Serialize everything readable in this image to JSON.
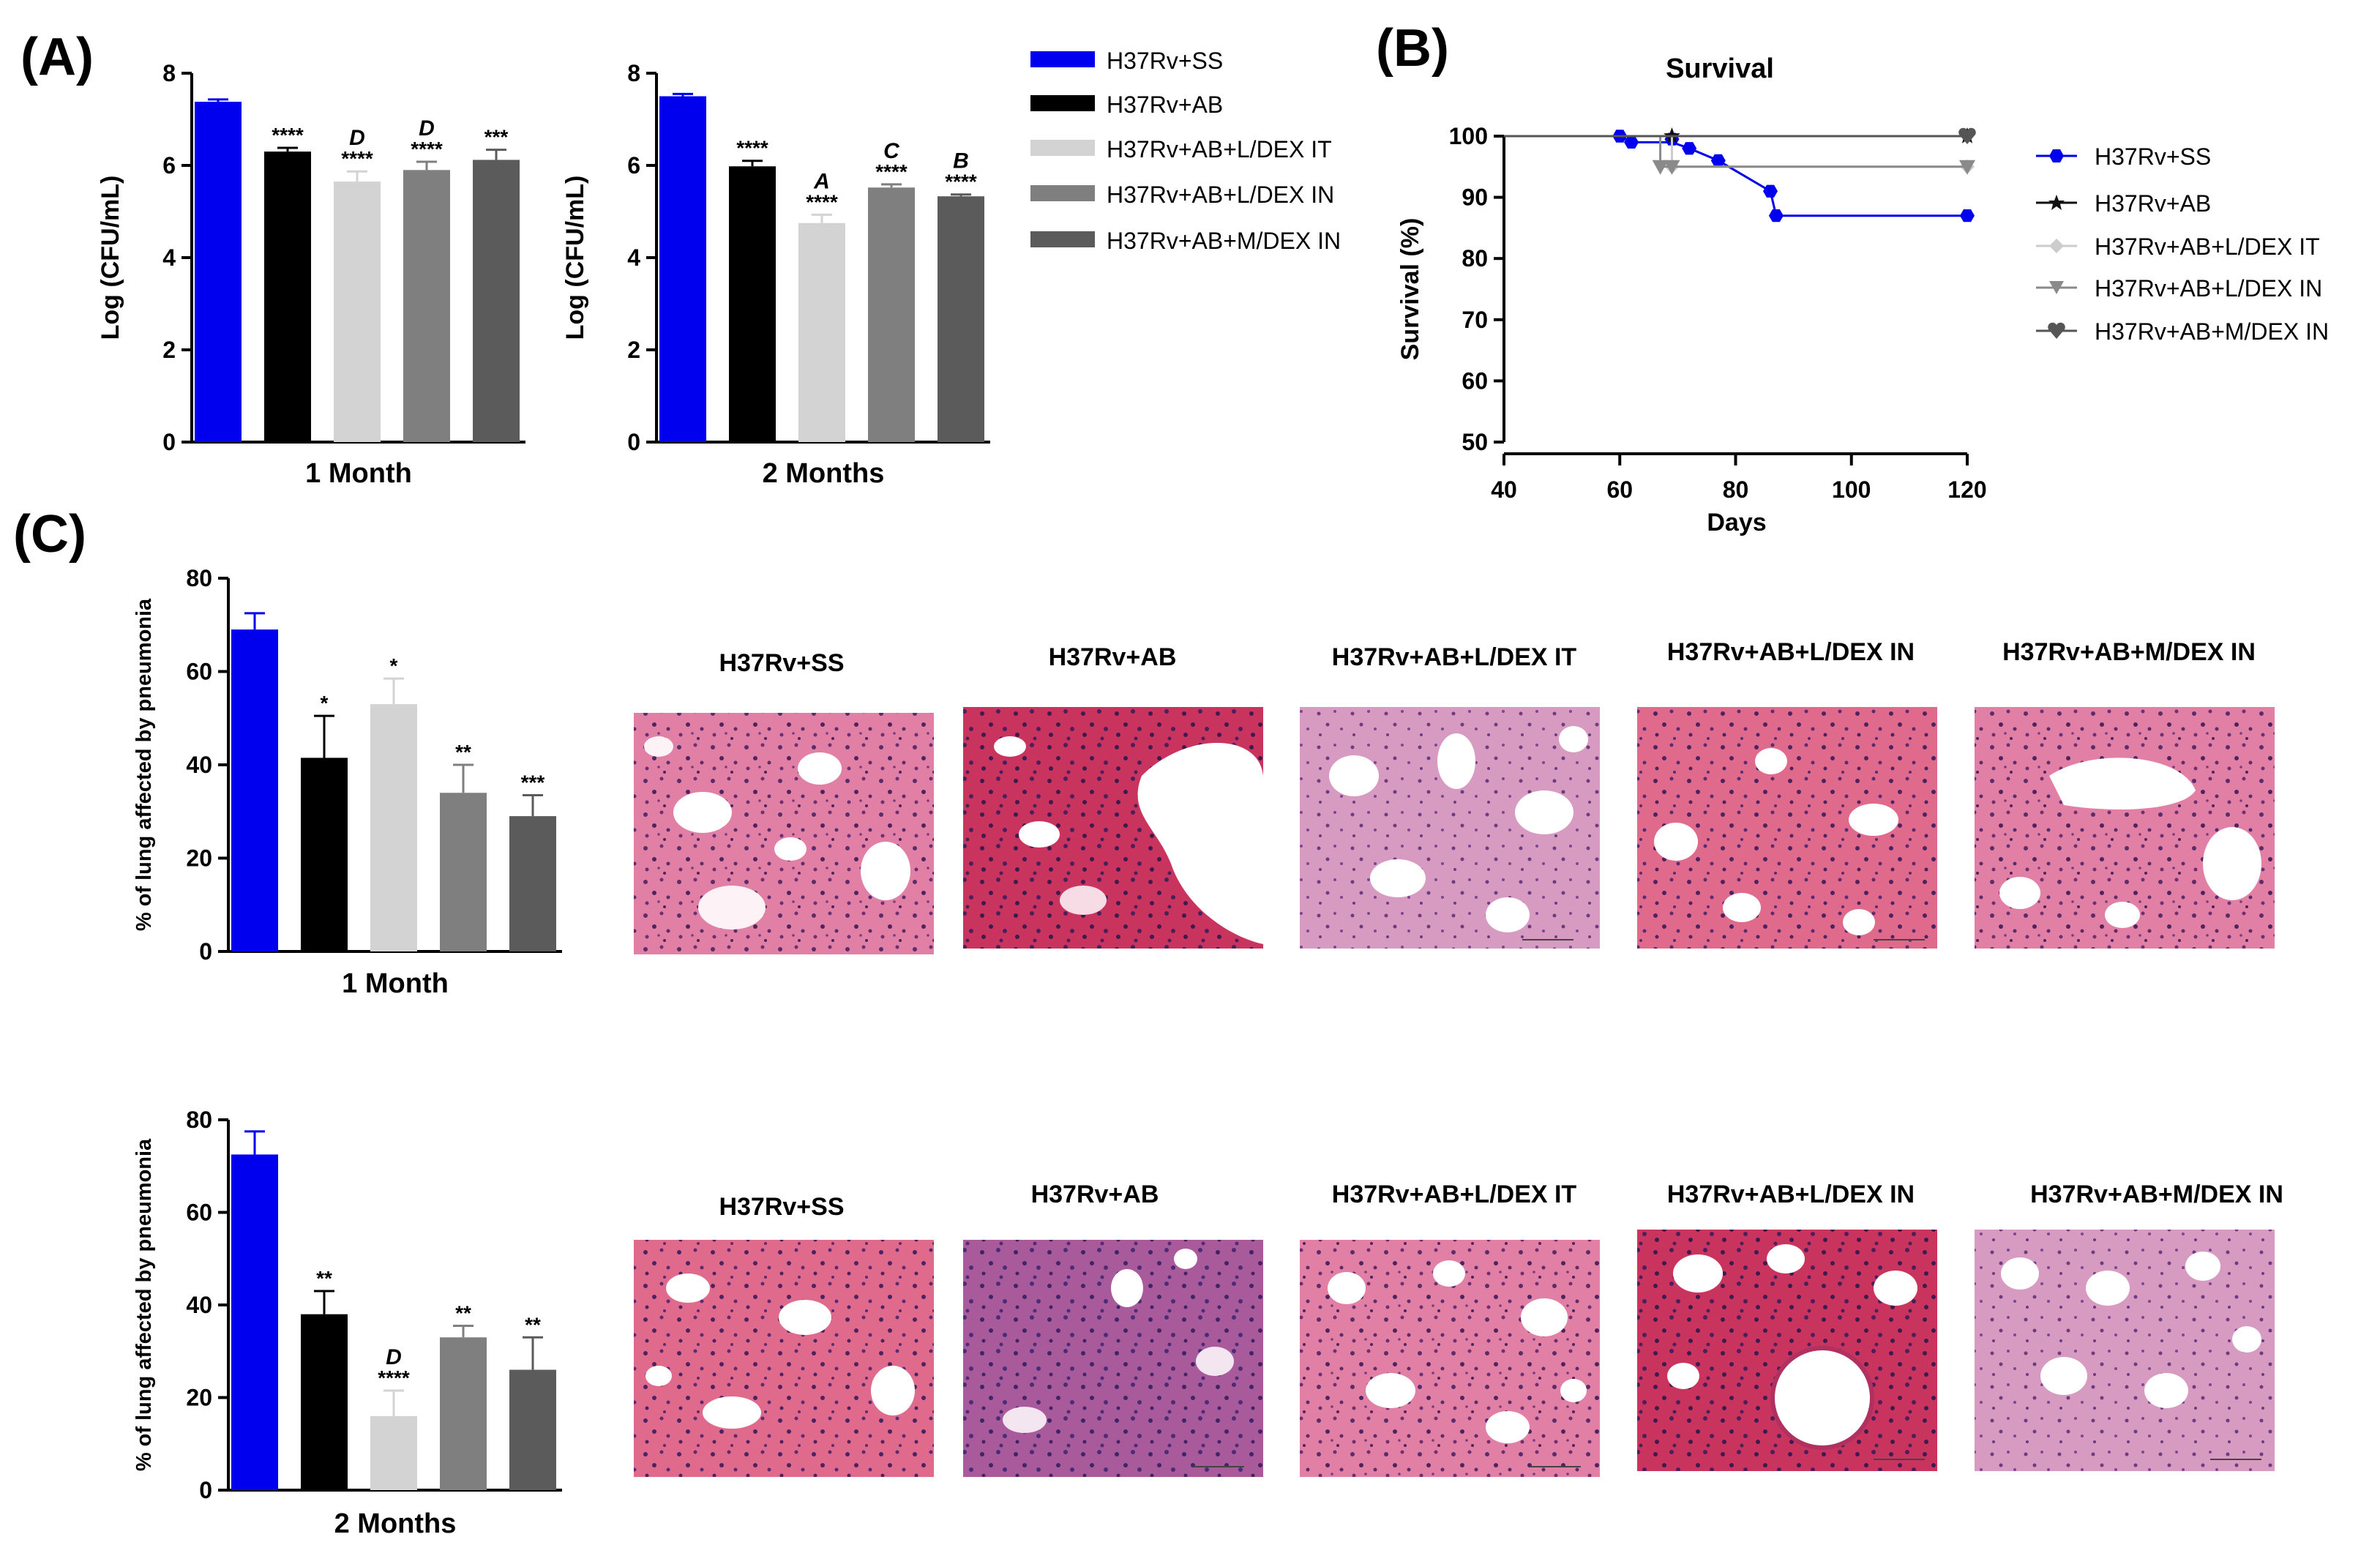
{
  "panel_labels": [
    "(A)",
    "(B)",
    "(C)"
  ],
  "colors": [
    "#0000ee",
    "#000000",
    "#d3d3d3",
    "#7f7f7f",
    "#5b5b5b"
  ],
  "chart_data": [
    {
      "id": "a1",
      "type": "bar",
      "xlabel": "1 Month",
      "ylabel": "Log (CFU/mL)",
      "ylim": [
        0,
        8
      ],
      "yticks": [
        0,
        2,
        4,
        6,
        8
      ],
      "categories": [
        "H37Rv+SS",
        "H37Rv+AB",
        "H37Rv+AB+L/DEX IT",
        "H37Rv+AB+L/DEX IN",
        "H37Rv+AB+M/DEX IN"
      ],
      "values": [
        7.38,
        6.3,
        5.65,
        5.9,
        6.12
      ],
      "errors": [
        0.05,
        0.08,
        0.22,
        0.18,
        0.22
      ],
      "significance": [
        "",
        "****",
        "****",
        "****",
        "***"
      ],
      "letters": [
        "",
        "",
        "D",
        "D",
        ""
      ]
    },
    {
      "id": "a2",
      "type": "bar",
      "xlabel": "2 Months",
      "ylabel": "Log (CFU/mL)",
      "ylim": [
        0,
        8
      ],
      "yticks": [
        0,
        2,
        4,
        6,
        8
      ],
      "categories": [
        "H37Rv+SS",
        "H37Rv+AB",
        "H37Rv+AB+L/DEX IT",
        "H37Rv+AB+L/DEX IN",
        "H37Rv+AB+M/DEX IN"
      ],
      "values": [
        7.5,
        5.98,
        4.75,
        5.52,
        5.33
      ],
      "errors": [
        0.05,
        0.12,
        0.18,
        0.07,
        0.04
      ],
      "significance": [
        "",
        "****",
        "****",
        "****",
        "****"
      ],
      "letters": [
        "",
        "",
        "A",
        "C",
        "B"
      ]
    },
    {
      "id": "b",
      "type": "line",
      "title": "Survival",
      "xlabel": "Days",
      "ylabel": "Survival (%)",
      "xlim": [
        40,
        120
      ],
      "ylim": [
        50,
        100
      ],
      "xticks": [
        40,
        60,
        80,
        100,
        120
      ],
      "yticks": [
        50,
        60,
        70,
        80,
        90,
        100
      ],
      "series": [
        {
          "name": "H37Rv+SS",
          "color": "#0000ee",
          "marker": "hexagon",
          "steps": [
            [
              40,
              100
            ],
            [
              60,
              100
            ],
            [
              62,
              99
            ],
            [
              69,
              99
            ],
            [
              72,
              98
            ],
            [
              77,
              96
            ],
            [
              86,
              91
            ],
            [
              87,
              87
            ],
            [
              120,
              87
            ]
          ],
          "points": [
            [
              60,
              100
            ],
            [
              62,
              99
            ],
            [
              69,
              99.5
            ],
            [
              72,
              98
            ],
            [
              77,
              96
            ],
            [
              86,
              91
            ],
            [
              87,
              87
            ],
            [
              120,
              87
            ]
          ]
        },
        {
          "name": "H37Rv+AB",
          "color": "#111111",
          "marker": "star",
          "steps": [
            [
              40,
              100
            ],
            [
              120,
              100
            ]
          ],
          "points": [
            [
              69,
              100
            ],
            [
              120,
              100
            ]
          ]
        },
        {
          "name": "H37Rv+AB+L/DEX IT",
          "color": "#cccccc",
          "marker": "diamond",
          "steps": [
            [
              40,
              100
            ],
            [
              69,
              100
            ],
            [
              69,
              95
            ],
            [
              120,
              95
            ]
          ],
          "points": [
            [
              69,
              95
            ],
            [
              120,
              95
            ]
          ]
        },
        {
          "name": "H37Rv+AB+L/DEX IN",
          "color": "#8a8a8a",
          "marker": "triangle-down",
          "steps": [
            [
              40,
              100
            ],
            [
              67,
              100
            ],
            [
              67,
              95
            ],
            [
              120,
              95
            ]
          ],
          "points": [
            [
              67,
              95
            ],
            [
              69,
              95
            ],
            [
              120,
              95
            ]
          ]
        },
        {
          "name": "H37Rv+AB+M/DEX IN",
          "color": "#555555",
          "marker": "heart",
          "steps": [
            [
              40,
              100
            ],
            [
              120,
              100
            ]
          ],
          "points": [
            [
              120,
              100
            ]
          ]
        }
      ]
    },
    {
      "id": "c1",
      "type": "bar",
      "xlabel": "1 Month",
      "ylabel": "% of lung affected by pneumonia",
      "ylim": [
        0,
        80
      ],
      "yticks": [
        0,
        20,
        40,
        60,
        80
      ],
      "categories": [
        "H37Rv+SS",
        "H37Rv+AB",
        "H37Rv+AB+L/DEX IT",
        "H37Rv+AB+L/DEX IN",
        "H37Rv+AB+M/DEX IN"
      ],
      "values": [
        69,
        41.5,
        53,
        34,
        29
      ],
      "errors": [
        3.5,
        9,
        5.5,
        6,
        4.5
      ],
      "significance": [
        "",
        "*",
        "*",
        "**",
        "***"
      ],
      "letters": [
        "",
        "",
        "",
        "",
        ""
      ]
    },
    {
      "id": "c2",
      "type": "bar",
      "xlabel": "2 Months",
      "ylabel": "% of lung affected by pneumonia",
      "ylim": [
        0,
        80
      ],
      "yticks": [
        0,
        20,
        40,
        60,
        80
      ],
      "categories": [
        "H37Rv+SS",
        "H37Rv+AB",
        "H37Rv+AB+L/DEX IT",
        "H37Rv+AB+L/DEX IN",
        "H37Rv+AB+M/DEX IN"
      ],
      "values": [
        72.5,
        38,
        16,
        33,
        26
      ],
      "errors": [
        5,
        5,
        5.5,
        2.5,
        7
      ],
      "significance": [
        "",
        "**",
        "****",
        "**",
        "**"
      ],
      "letters": [
        "",
        "",
        "D",
        "",
        ""
      ]
    }
  ],
  "legend_a": [
    "H37Rv+SS",
    "H37Rv+AB",
    "H37Rv+AB+L/DEX IT",
    "H37Rv+AB+L/DEX IN",
    "H37Rv+AB+M/DEX IN"
  ],
  "histology": {
    "row1_captions": [
      "H37Rv+SS",
      "H37Rv+AB",
      "H37Rv+AB+L/DEX IT",
      "H37Rv+AB+L/DEX IN",
      "H37Rv+AB+M/DEX IN"
    ],
    "row2_captions": [
      "H37Rv+SS",
      "H37Rv+AB",
      "H37Rv+AB+L/DEX IT",
      "H37Rv+AB+L/DEX IN",
      "H37Rv+AB+M/DEX IN"
    ]
  }
}
